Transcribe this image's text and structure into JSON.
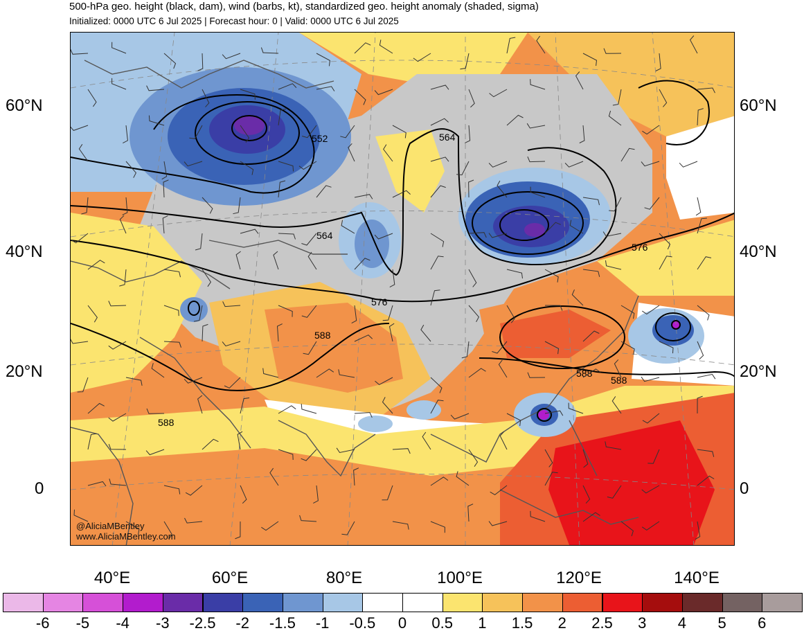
{
  "header": {
    "title": "500-hPa geo. height (black, dam), wind (barbs, kt), standardized geo. height anomaly (shaded, sigma)",
    "subtitle": "Initialized: 0000 UTC 6 Jul 2025 | Forecast hour: 0 | Valid: 0000 UTC 6 Jul 2025"
  },
  "map": {
    "lat_labels": [
      "60°N",
      "40°N",
      "20°N",
      "0"
    ],
    "lon_labels": [
      "40°E",
      "60°E",
      "80°E",
      "100°E",
      "120°E",
      "140°E"
    ],
    "contour_labels": [
      "552",
      "564",
      "564",
      "576",
      "576",
      "588",
      "588",
      "588",
      "588"
    ],
    "credit": {
      "handle": "@AliciaMBentley",
      "site": "www.AliciaMBentley.com"
    }
  },
  "colorbar": {
    "labels": [
      "-6",
      "-5",
      "-4",
      "-3",
      "-2.5",
      "-2",
      "-1.5",
      "-1",
      "-0.5",
      "0",
      "0.5",
      "1",
      "1.5",
      "2",
      "2.5",
      "3",
      "4",
      "5",
      "6"
    ],
    "colors": [
      "#ebb8e8",
      "#e585e3",
      "#d650d8",
      "#b21ccd",
      "#6a2ca8",
      "#3a3ea6",
      "#3a63b6",
      "#6f96d0",
      "#a7c7e6",
      "#ffffff",
      "#ffffff",
      "#fbe46f",
      "#f6c25a",
      "#f29249",
      "#ec5e33",
      "#e8141a",
      "#a50d0d",
      "#6a2a2a",
      "#746262",
      "#a89c9c"
    ]
  }
}
